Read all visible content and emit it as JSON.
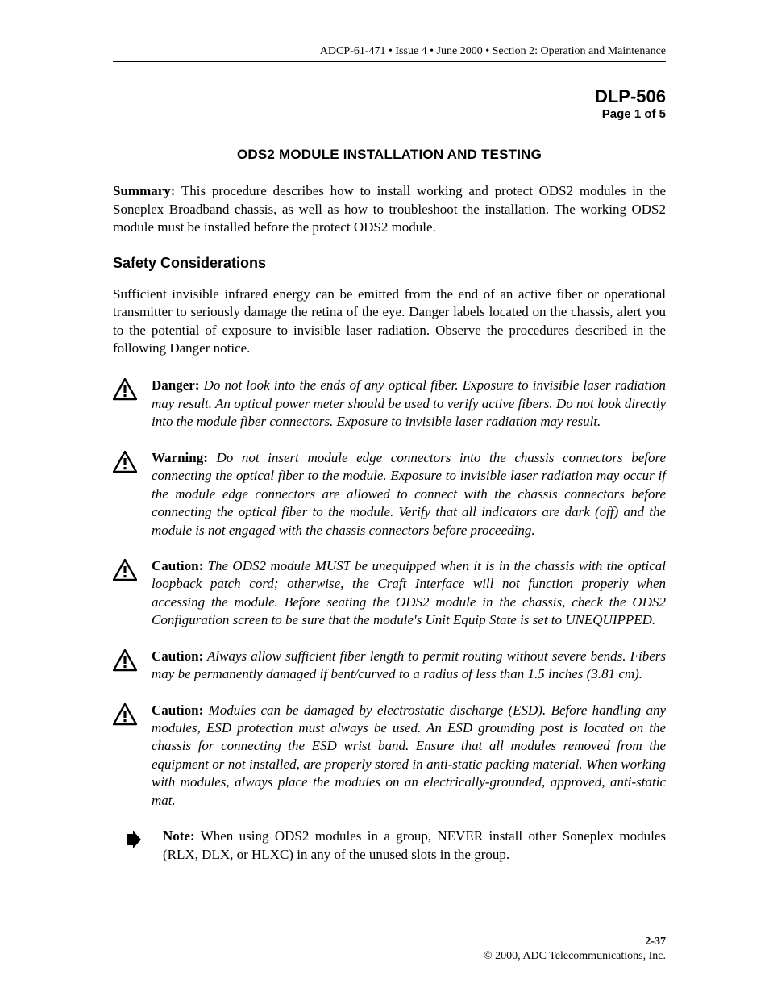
{
  "header": {
    "running_head": "ADCP-61-471 • Issue 4 • June 2000 • Section 2: Operation and Maintenance"
  },
  "dlp": {
    "code": "DLP-506",
    "page": "Page 1 of 5"
  },
  "title": "ODS2 MODULE INSTALLATION AND TESTING",
  "summary": {
    "label": "Summary:",
    "text": " This procedure describes how to install working and protect ODS2 modules in the Soneplex Broadband chassis, as well as how to troubleshoot the installation. The working ODS2 module must be installed before the protect ODS2 module."
  },
  "safety": {
    "heading": "Safety Considerations",
    "intro": "Sufficient invisible infrared energy can be emitted from the end of an active fiber or operational transmitter to seriously damage the retina of the eye. Danger labels located on the chassis, alert you to the potential of exposure to invisible laser radiation. Observe the procedures described in the following Danger notice."
  },
  "notices": [
    {
      "icon": "warning-triangle",
      "label": "Danger:",
      "italic": true,
      "text": " Do not look into the ends of any optical fiber. Exposure to invisible laser radiation may result. An optical power meter should be used to verify active fibers. Do not look directly into the module fiber connectors. Exposure to invisible laser radiation may result."
    },
    {
      "icon": "warning-triangle",
      "label": "Warning:",
      "italic": true,
      "text": " Do not insert module edge connectors into the chassis connectors before connecting the optical fiber to the module. Exposure to invisible laser radiation may occur if the module edge connectors are allowed to connect with the chassis connectors before connecting the optical fiber to the module. Verify that all indicators are dark (off) and the module is not engaged with the chassis connectors before proceeding."
    },
    {
      "icon": "warning-triangle",
      "label": "Caution:",
      "italic": true,
      "text": " The ODS2 module MUST be unequipped when it is in the chassis with the optical loopback patch cord; otherwise, the Craft Interface will not function properly when accessing the module. Before seating the ODS2 module in the chassis, check the ODS2 Configuration screen to be sure that the module's Unit Equip State is set to UNEQUIPPED."
    },
    {
      "icon": "warning-triangle",
      "label": "Caution:",
      "italic": true,
      "text": " Always allow sufficient fiber length to permit routing without severe bends. Fibers may be permanently damaged if bent/curved to a radius of less than 1.5 inches (3.81 cm)."
    },
    {
      "icon": "warning-triangle",
      "label": "Caution:",
      "italic": true,
      "text": " Modules can be damaged by electrostatic discharge (ESD). Before handling any modules, ESD protection must always be used. An ESD grounding post is located on the chassis for connecting the ESD wrist band. Ensure that all modules removed from the equipment or not installed, are properly stored in anti-static packing material. When working with modules, always place the modules on an electrically-grounded, approved, anti-static mat."
    },
    {
      "icon": "note-arrow",
      "label": "Note:",
      "italic": false,
      "text": " When using ODS2 modules in a group, NEVER install other Soneplex modules (RLX, DLX, or HLXC) in any of the unused slots in the group."
    }
  ],
  "footer": {
    "page_num": "2-37",
    "copyright": "© 2000, ADC Telecommunications, Inc."
  },
  "icons": {
    "warning_svg_color": "#000000",
    "note_svg_color": "#000000"
  }
}
